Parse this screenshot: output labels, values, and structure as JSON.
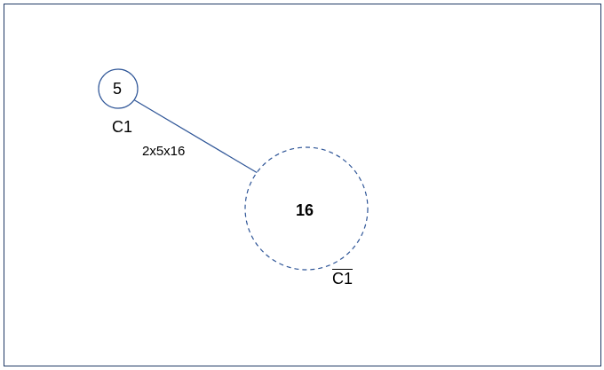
{
  "diagram": {
    "nodes": [
      {
        "id": "node-5",
        "value": "5",
        "bold": false,
        "border": "solid"
      },
      {
        "id": "node-16",
        "value": "16",
        "bold": true,
        "border": "dashed"
      }
    ],
    "cuts": {
      "left": "C1",
      "right": "C1",
      "right_overlined": true
    },
    "edge": {
      "from": "node-5",
      "to": "node-16",
      "label": "2x5x16"
    },
    "colors": {
      "stroke": "#2e5597",
      "frame": "#1f3864",
      "text": "#000000"
    }
  }
}
